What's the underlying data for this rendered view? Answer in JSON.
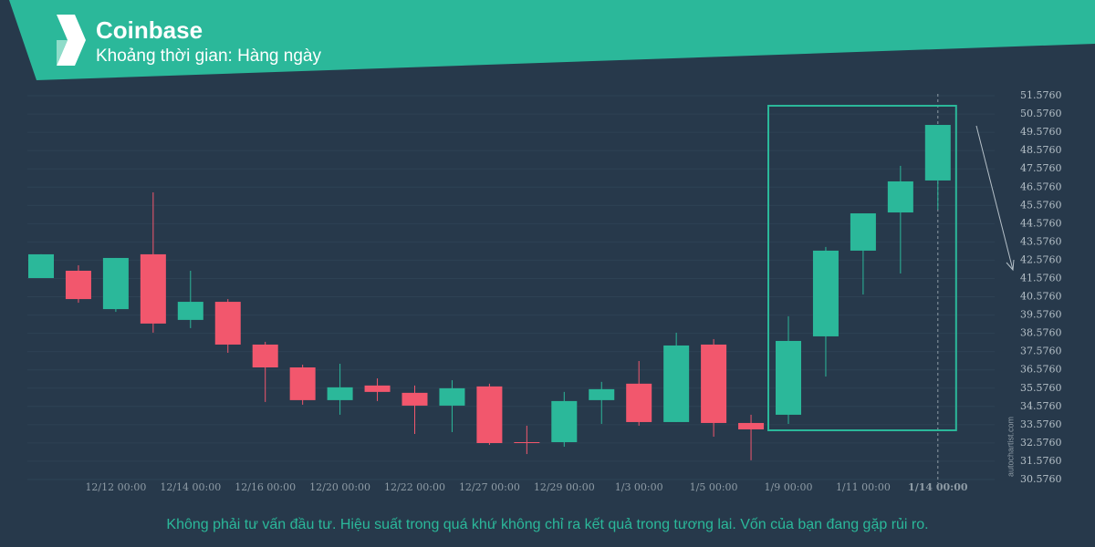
{
  "chart_data": {
    "type": "candlestick",
    "title": "Coinbase",
    "subtitle": "Khoảng thời gian: Hàng ngày",
    "note": "Không phải tư vấn đầu tư. Hiệu suất trong quá khứ không chỉ ra kết quả trong tương lai. Vốn của bạn đang gặp rủi ro.",
    "watermark": "autochartist.com",
    "categories": [
      null,
      null,
      "12/12 00:00",
      null,
      "12/14 00:00",
      null,
      "12/16 00:00",
      null,
      "12/20 00:00",
      null,
      "12/22 00:00",
      null,
      "12/27 00:00",
      null,
      "12/29 00:00",
      null,
      "1/3 00:00",
      null,
      "1/5 00:00",
      null,
      "1/9 00:00",
      null,
      "1/11 00:00",
      null,
      "1/14 00:00"
    ],
    "open": [
      41.6,
      42.0,
      39.9,
      42.9,
      39.31,
      40.3,
      37.96,
      36.71,
      34.92,
      35.72,
      35.32,
      34.62,
      35.67,
      32.62,
      32.62,
      34.92,
      35.82,
      33.72,
      37.96,
      33.67,
      34.12,
      38.41,
      43.1,
      45.19,
      46.94
    ],
    "high": [
      42.9,
      42.3,
      42.7,
      46.29,
      42.0,
      40.45,
      38.11,
      36.86,
      36.91,
      36.11,
      35.72,
      36.01,
      35.82,
      33.52,
      35.37,
      35.92,
      37.06,
      38.61,
      38.26,
      34.12,
      39.51,
      43.3,
      45.14,
      47.74,
      49.98
    ],
    "low": [
      41.6,
      40.25,
      39.75,
      38.61,
      38.86,
      37.51,
      34.82,
      34.67,
      34.12,
      34.87,
      33.07,
      33.17,
      32.47,
      31.97,
      32.37,
      33.62,
      33.52,
      33.72,
      32.92,
      31.63,
      33.62,
      36.21,
      40.7,
      41.85,
      45.34
    ],
    "close": [
      42.9,
      40.45,
      42.7,
      39.11,
      40.3,
      37.96,
      36.71,
      34.92,
      35.62,
      35.37,
      34.62,
      35.57,
      32.57,
      32.6,
      34.87,
      35.52,
      33.72,
      37.91,
      33.67,
      33.32,
      38.16,
      43.1,
      45.14,
      46.89,
      49.98
    ],
    "up_color": "#2bb89a",
    "down_color": "#f2576d",
    "ylim": [
      30.076,
      52.076
    ],
    "yticks": [
      {
        "value": 30.576,
        "label": "30.5760"
      },
      {
        "value": 31.576,
        "label": "31.5760"
      },
      {
        "value": 32.576,
        "label": "32.5760"
      },
      {
        "value": 33.576,
        "label": "33.5760"
      },
      {
        "value": 34.576,
        "label": "34.5760"
      },
      {
        "value": 35.576,
        "label": "35.5760"
      },
      {
        "value": 36.576,
        "label": "36.5760"
      },
      {
        "value": 37.576,
        "label": "37.5760"
      },
      {
        "value": 38.576,
        "label": "38.5760"
      },
      {
        "value": 39.576,
        "label": "39.5760"
      },
      {
        "value": 40.576,
        "label": "40.5760"
      },
      {
        "value": 41.576,
        "label": "41.5760"
      },
      {
        "value": 42.576,
        "label": "42.5760"
      },
      {
        "value": 43.576,
        "label": "43.5760"
      },
      {
        "value": 44.576,
        "label": "44.5760"
      },
      {
        "value": 45.576,
        "label": "45.5760"
      },
      {
        "value": 46.576,
        "label": "46.5760"
      },
      {
        "value": 47.576,
        "label": "47.5760"
      },
      {
        "value": 48.576,
        "label": "48.5760"
      },
      {
        "value": 49.576,
        "label": "49.5760"
      },
      {
        "value": 50.576,
        "label": "50.5760"
      },
      {
        "value": 51.576,
        "label": "51.5760"
      }
    ]
  }
}
